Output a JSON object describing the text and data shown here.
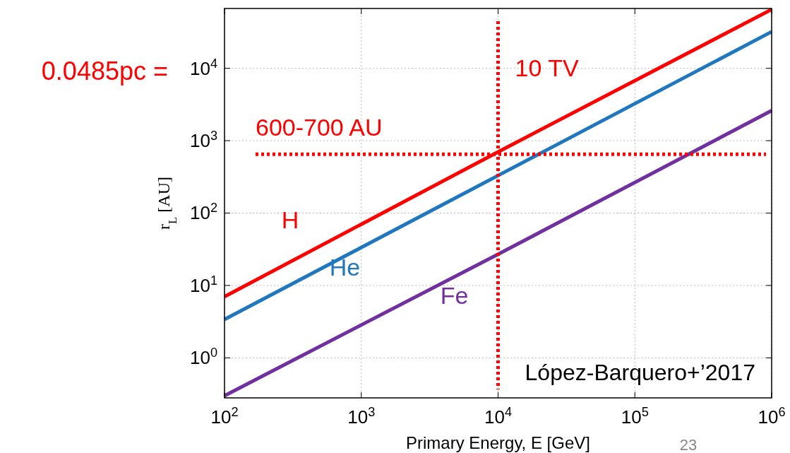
{
  "chart_data": {
    "type": "line",
    "xlabel": "Primary Energy, E [GeV]",
    "ylabel": "r$_{L}$ [AU]",
    "log": "xy",
    "grid": true,
    "line_style": "solid",
    "xlim": [
      100,
      1000000
    ],
    "ylim": [
      0.28,
      67000
    ],
    "xticks": [
      {
        "value": 100,
        "label": "10$^{2}$"
      },
      {
        "value": 1000,
        "label": "10$^{3}$"
      },
      {
        "value": 10000,
        "label": "10$^{4}$"
      },
      {
        "value": 100000,
        "label": "10$^{5}$"
      },
      {
        "value": 1000000,
        "label": "10$^{6}$"
      }
    ],
    "yticks": [
      {
        "value": 1,
        "label": "10$^{0}$"
      },
      {
        "value": 10,
        "label": "10$^{1}$"
      },
      {
        "value": 100,
        "label": "10$^{2}$"
      },
      {
        "value": 1000,
        "label": "10$^{3}$"
      },
      {
        "value": 10000,
        "label": "10$^{4}$"
      }
    ],
    "x": [
      100,
      10000,
      1000000
    ],
    "series": [
      {
        "name": "H",
        "color": "#ff0000",
        "values": [
          7,
          700,
          65000
        ]
      },
      {
        "name": "He",
        "color": "#1f77c0",
        "values": [
          3.4,
          330,
          32000
        ]
      },
      {
        "name": "Fe",
        "color": "#7030a0",
        "values": [
          0.3,
          27,
          2600
        ]
      }
    ],
    "ref_lines": [
      {
        "axis": "y",
        "value": 650,
        "label": "600-700 AU",
        "color": "#ff0000",
        "line_style": "dotted"
      },
      {
        "axis": "x",
        "value": 10000,
        "label": "10 TV",
        "color": "#ff0000",
        "line_style": "dotted"
      }
    ],
    "annotations": [
      "0.0485pc =",
      "López-Barquero+’2017",
      "23"
    ]
  }
}
